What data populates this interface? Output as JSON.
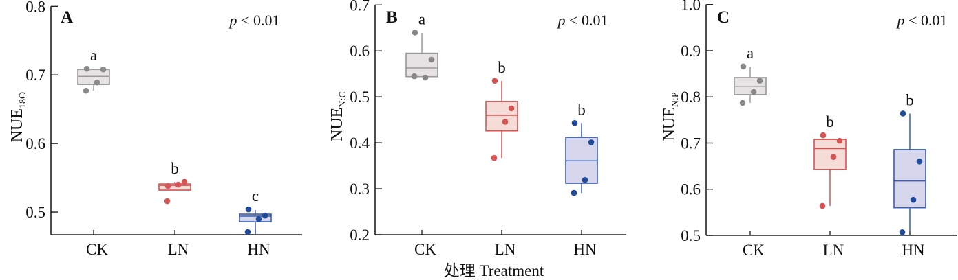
{
  "chart_data": [
    {
      "type": "box",
      "panel_label": "A",
      "ylabel_main": "NUE",
      "ylabel_sub": "18O",
      "annotation": "p < 0.01",
      "ylim": [
        0.467,
        0.8
      ],
      "yticks": [
        0.5,
        0.6,
        0.7,
        0.8
      ],
      "yticklabels": [
        "0.5",
        "0.6",
        "0.7",
        "0.8"
      ],
      "categories": [
        "CK",
        "LN",
        "HN"
      ],
      "groups": [
        {
          "name": "CK",
          "letter": "a",
          "q1": 0.686,
          "median": 0.698,
          "q3": 0.708,
          "whisker_low": 0.677,
          "whisker_high": 0.709,
          "points": [
            0.709,
            0.708,
            0.689,
            0.677
          ]
        },
        {
          "name": "LN",
          "letter": "b",
          "q1": 0.532,
          "median": 0.539,
          "q3": 0.541,
          "whisker_low": 0.532,
          "whisker_high": 0.544,
          "points": [
            0.538,
            0.544,
            0.54,
            0.516
          ]
        },
        {
          "name": "HN",
          "letter": "c",
          "q1": 0.486,
          "median": 0.494,
          "q3": 0.497,
          "whisker_low": 0.467,
          "whisker_high": 0.503,
          "points": [
            0.504,
            0.495,
            0.49,
            0.471
          ]
        }
      ]
    },
    {
      "type": "box",
      "panel_label": "B",
      "ylabel_main": "NUE",
      "ylabel_sub": "N:C",
      "annotation": "p < 0.01",
      "xlabel": "处理 Treatment",
      "ylim": [
        0.2,
        0.7
      ],
      "yticks": [
        0.2,
        0.3,
        0.4,
        0.5,
        0.6,
        0.7
      ],
      "yticklabels": [
        "0.2",
        "0.3",
        "0.4",
        "0.5",
        "0.6",
        "0.7"
      ],
      "categories": [
        "CK",
        "LN",
        "HN"
      ],
      "groups": [
        {
          "name": "CK",
          "letter": "a",
          "q1": 0.544,
          "median": 0.563,
          "q3": 0.595,
          "whisker_low": 0.544,
          "whisker_high": 0.639,
          "points": [
            0.64,
            0.581,
            0.542,
            0.545
          ]
        },
        {
          "name": "LN",
          "letter": "b",
          "q1": 0.426,
          "median": 0.46,
          "q3": 0.49,
          "whisker_low": 0.367,
          "whisker_high": 0.535,
          "points": [
            0.535,
            0.475,
            0.446,
            0.367
          ]
        },
        {
          "name": "HN",
          "letter": "b",
          "q1": 0.312,
          "median": 0.361,
          "q3": 0.412,
          "whisker_low": 0.291,
          "whisker_high": 0.443,
          "points": [
            0.443,
            0.401,
            0.319,
            0.291
          ]
        }
      ]
    },
    {
      "type": "box",
      "panel_label": "C",
      "ylabel_main": "NUE",
      "ylabel_sub": "N:P",
      "annotation": "p < 0.01",
      "ylim": [
        0.5,
        1.0
      ],
      "yticks": [
        0.5,
        0.6,
        0.7,
        0.8,
        0.9,
        1.0
      ],
      "yticklabels": [
        "0.5",
        "0.6",
        "0.7",
        "0.8",
        "0.9",
        "1.0"
      ],
      "categories": [
        "CK",
        "LN",
        "HN"
      ],
      "groups": [
        {
          "name": "CK",
          "letter": "a",
          "q1": 0.805,
          "median": 0.823,
          "q3": 0.842,
          "whisker_low": 0.787,
          "whisker_high": 0.865,
          "points": [
            0.866,
            0.835,
            0.811,
            0.787
          ]
        },
        {
          "name": "LN",
          "letter": "b",
          "q1": 0.643,
          "median": 0.688,
          "q3": 0.708,
          "whisker_low": 0.564,
          "whisker_high": 0.708,
          "points": [
            0.717,
            0.705,
            0.67,
            0.564
          ]
        },
        {
          "name": "HN",
          "letter": "b",
          "q1": 0.56,
          "median": 0.618,
          "q3": 0.686,
          "whisker_low": 0.507,
          "whisker_high": 0.764,
          "points": [
            0.764,
            0.66,
            0.577,
            0.507
          ]
        }
      ]
    }
  ],
  "colors": {
    "CK": {
      "point": "#8a8a8a",
      "fill": "#e7e3e4",
      "stroke": "#9a9a9a"
    },
    "LN": {
      "point": "#d65454",
      "fill": "#f6dcd6",
      "stroke": "#d65454"
    },
    "HN": {
      "point": "#1f4a9a",
      "fill": "#d6d6ec",
      "stroke": "#3a5db0"
    }
  }
}
